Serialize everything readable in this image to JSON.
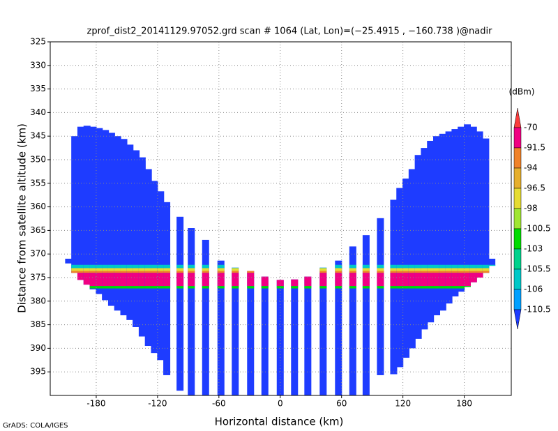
{
  "chart_data": {
    "type": "profile",
    "title": "zprof_dist2_20141129.97052.grd  scan # 1064  (Lat, Lon)=(−25.4915 , −160.738 )@nadir",
    "xlabel": "Horizontal distance (km)",
    "ylabel": "Distance from satellite altitude (km)",
    "footer": "GrADS: COLA/IGES",
    "xlim": [
      -225,
      226
    ],
    "ylim": [
      325,
      400
    ],
    "xticks": [
      -180,
      -120,
      -60,
      0,
      60,
      120,
      180
    ],
    "yticks": [
      325,
      330,
      335,
      340,
      345,
      350,
      355,
      360,
      365,
      370,
      375,
      380,
      385,
      390,
      395
    ],
    "grid": true,
    "y_inverted": true,
    "fill_color": "#1e3cff",
    "x": [
      -207,
      -201,
      -195,
      -189,
      -183,
      -177,
      -171,
      -165,
      -159,
      -153,
      -147,
      -141,
      -135,
      -129,
      -123,
      -117,
      -111,
      -98,
      -87,
      -73,
      -58,
      -44,
      -29,
      -15,
      0,
      14,
      27,
      42,
      57,
      71,
      84,
      98,
      111,
      117,
      123,
      129,
      135,
      141,
      147,
      153,
      159,
      165,
      171,
      177,
      183,
      189,
      195,
      201,
      207
    ],
    "top": [
      371,
      345,
      343,
      342.8,
      343,
      343.3,
      343.7,
      344.3,
      345,
      345.6,
      346.8,
      348,
      349.5,
      352,
      354.5,
      356.7,
      359,
      362.1,
      364.5,
      367,
      371.4,
      372.9,
      373.6,
      374.8,
      375.5,
      375.4,
      374.8,
      372.9,
      371.4,
      368.4,
      366,
      362.4,
      358.5,
      356,
      354,
      352,
      349,
      347.5,
      346,
      345,
      344.5,
      344,
      343.5,
      343,
      342.5,
      343,
      344,
      345.5,
      371
    ],
    "bottom": [
      372,
      374,
      375.5,
      376.5,
      377.5,
      378.5,
      379.8,
      381,
      382,
      383,
      384,
      385.5,
      387.5,
      389.5,
      391,
      392.5,
      395.7,
      399,
      400,
      400,
      400,
      400,
      400,
      400,
      400,
      400,
      400,
      400,
      400,
      400,
      400,
      395.7,
      395.5,
      394,
      392,
      390,
      388,
      386,
      384.5,
      383,
      382,
      380.5,
      379,
      378,
      377,
      376,
      375,
      374,
      372.5
    ],
    "layers": [
      {
        "top": 372.3,
        "bottom": 373,
        "color": "#00c8c8"
      },
      {
        "top": 373,
        "bottom": 373.6,
        "color": "#e6dc32"
      },
      {
        "top": 373.6,
        "bottom": 374,
        "color": "#f08228"
      },
      {
        "top": 374,
        "bottom": 376.8,
        "color": "#f00082"
      },
      {
        "top": 376.8,
        "bottom": 377.3,
        "color": "#00dc00"
      }
    ],
    "colorbar": {
      "unit": "(dBm)",
      "levels": [
        -70,
        -91.5,
        -94,
        -96.5,
        -98,
        -100.5,
        -103,
        -105.5,
        -106,
        -110.5
      ],
      "colors": [
        "#fa3c3c",
        "#f00082",
        "#f08228",
        "#e6af2d",
        "#e6dc32",
        "#a0e632",
        "#00dc00",
        "#00d28c",
        "#00c8c8",
        "#00a0ff",
        "#1e3cff"
      ]
    }
  }
}
